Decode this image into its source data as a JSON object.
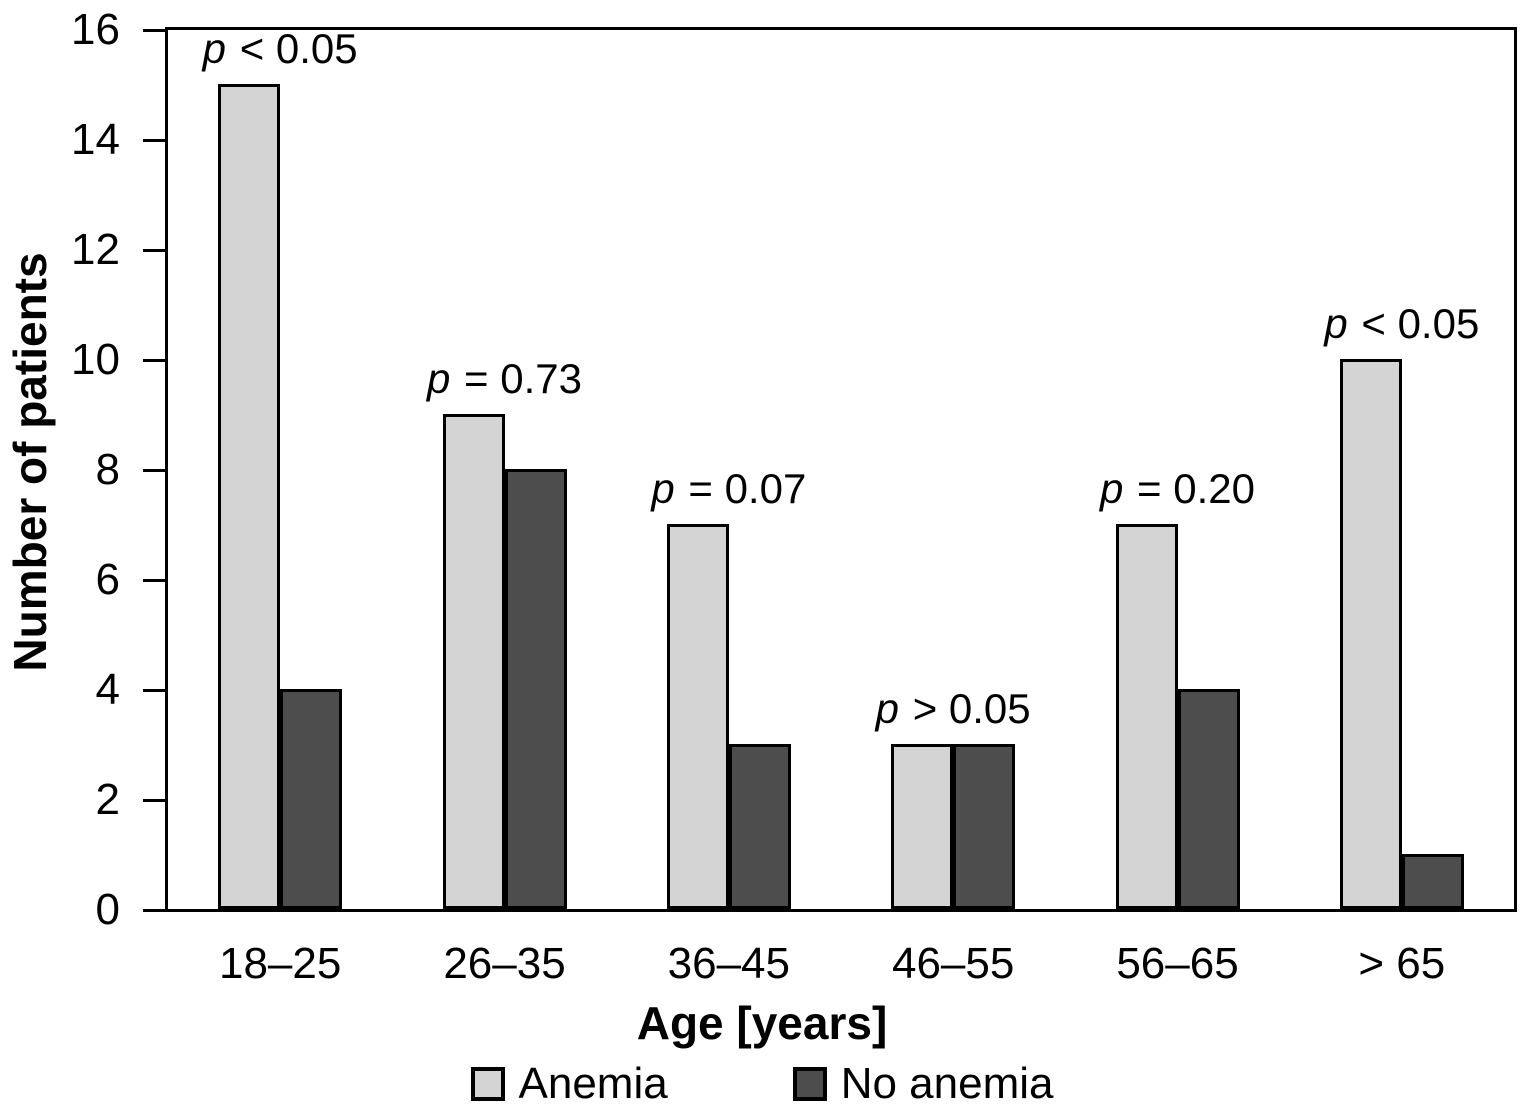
{
  "chart_data": {
    "type": "bar",
    "title": "",
    "categories": [
      "18–25",
      "26–35",
      "36–45",
      "46–55",
      "56–65",
      "> 65"
    ],
    "series": [
      {
        "name": "Anemia",
        "color": "#d4d4d4",
        "values": [
          15,
          9,
          7,
          3,
          7,
          10
        ]
      },
      {
        "name": "No anemia",
        "color": "#4d4d4d",
        "values": [
          4,
          8,
          3,
          3,
          4,
          1
        ]
      }
    ],
    "annotations": [
      "p < 0.05",
      "p = 0.73",
      "p = 0.07",
      "p > 0.05",
      "p = 0.20",
      "p < 0.05"
    ],
    "xlabel": "Age [years]",
    "ylabel": "Number of patients",
    "ylim": [
      0,
      16
    ],
    "yticks": [
      0,
      2,
      4,
      6,
      8,
      10,
      12,
      14,
      16
    ],
    "grid": false,
    "bar_outline_color": "#000000",
    "legend_position": "bottom"
  }
}
